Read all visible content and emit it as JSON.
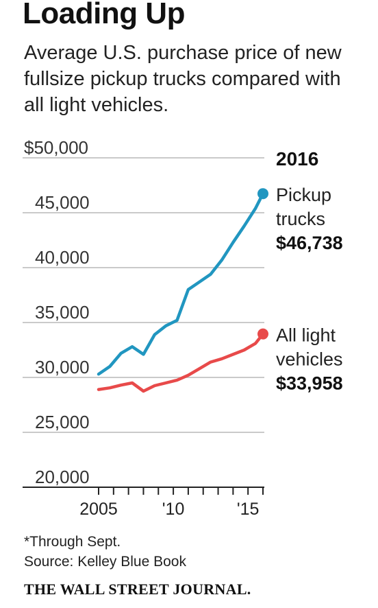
{
  "title": "Loading Up",
  "subtitle": "Average U.S. purchase price of new fullsize pickup trucks compared with all light vehicles.",
  "footnote": "*Through Sept.",
  "source": "Source: Kelley Blue Book",
  "brand": "THE WALL STREET JOURNAL.",
  "colors": {
    "pickup": "#2196c0",
    "light": "#e84a4a",
    "grid": "#b8b8b8",
    "axis": "#222222"
  },
  "chart_data": {
    "type": "line",
    "title": "Loading Up",
    "ylim": [
      20000,
      50000
    ],
    "xlim": [
      2005,
      2016
    ],
    "y_ticks": [
      {
        "value": 50000,
        "label": "$50,000"
      },
      {
        "value": 45000,
        "label": "45,000"
      },
      {
        "value": 40000,
        "label": "40,000"
      },
      {
        "value": 35000,
        "label": "35,000"
      },
      {
        "value": 30000,
        "label": "30,000"
      },
      {
        "value": 25000,
        "label": "25,000"
      },
      {
        "value": 20000,
        "label": "20,000"
      }
    ],
    "x_ticks": [
      2005,
      2006,
      2007,
      2008,
      2009,
      2010,
      2011,
      2012,
      2013,
      2014,
      2015,
      2016
    ],
    "x_tick_labels": [
      {
        "value": 2005,
        "label": "2005"
      },
      {
        "value": 2010,
        "label": "'10"
      },
      {
        "value": 2015,
        "label": "'15"
      }
    ],
    "x": [
      2005,
      2005.75,
      2006.5,
      2007.25,
      2008,
      2008.75,
      2009.5,
      2010.25,
      2011,
      2011.75,
      2012.5,
      2013.25,
      2014,
      2014.75,
      2015.5,
      2016
    ],
    "grid": true,
    "year_label": "2016",
    "series": [
      {
        "name": "Pickup trucks",
        "label_lines": [
          "Pickup",
          "trucks"
        ],
        "value_label": "$46,738",
        "color": "#2196c0",
        "values": [
          30300,
          31000,
          32200,
          32800,
          32100,
          33900,
          34700,
          35200,
          38000,
          38700,
          39400,
          40700,
          42300,
          43800,
          45400,
          46738
        ]
      },
      {
        "name": "All light vehicles",
        "label_lines": [
          "All light",
          "vehicles"
        ],
        "value_label": "$33,958",
        "color": "#e84a4a",
        "values": [
          28900,
          29050,
          29300,
          29500,
          28750,
          29250,
          29500,
          29750,
          30200,
          30800,
          31400,
          31700,
          32100,
          32500,
          33100,
          33958
        ]
      }
    ]
  }
}
